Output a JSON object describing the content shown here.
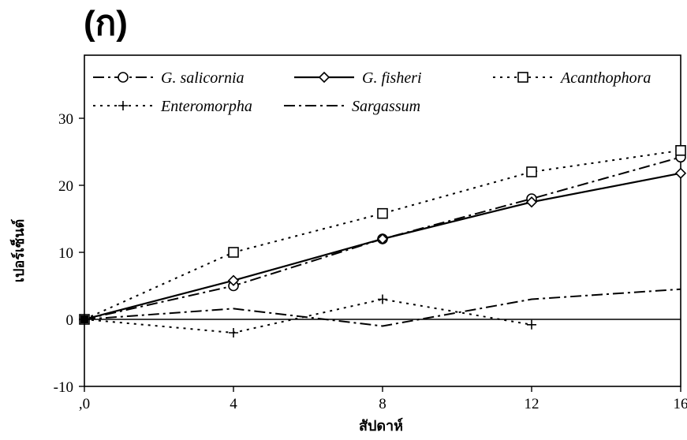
{
  "panel_label": "(ก)",
  "chart_data": {
    "type": "line",
    "title": "",
    "xlabel": "สัปดาห์",
    "ylabel": "เปอร์เซ็นต์",
    "x": [
      0,
      4,
      8,
      12,
      16
    ],
    "x_tick_labels": [
      ",0",
      "4",
      "8",
      "12",
      "16"
    ],
    "xlim": [
      0,
      16
    ],
    "ylim": [
      -10,
      30
    ],
    "y_ticks": [
      -10,
      0,
      10,
      20,
      30
    ],
    "y_tick_labels": [
      "-10",
      "0",
      "10",
      "20",
      "30"
    ],
    "grid": false,
    "legend_position": "top",
    "series": [
      {
        "name": "G. salicornia",
        "marker": "circle",
        "line_style": "dashdot",
        "color": "#000000",
        "x": [
          0,
          4,
          8,
          12,
          16
        ],
        "values": [
          0,
          5,
          12,
          18,
          24.2
        ]
      },
      {
        "name": "G. fisheri",
        "marker": "diamond",
        "line_style": "solid",
        "color": "#000000",
        "x": [
          0,
          4,
          8,
          12,
          16
        ],
        "values": [
          0,
          5.8,
          12,
          17.5,
          21.8
        ]
      },
      {
        "name": "Acanthophora",
        "marker": "square",
        "line_style": "dotted",
        "color": "#000000",
        "x": [
          0,
          4,
          8,
          12,
          16
        ],
        "values": [
          0,
          10,
          15.8,
          22,
          25.2
        ]
      },
      {
        "name": "Enteromorpha",
        "marker": "plus",
        "line_style": "dotted",
        "color": "#000000",
        "x": [
          0,
          4,
          8,
          12
        ],
        "values": [
          0,
          -2,
          3,
          -0.8
        ]
      },
      {
        "name": "Sargassum",
        "marker": "cross",
        "line_style": "dashdot",
        "color": "#000000",
        "x": [
          0,
          4,
          8,
          12,
          16
        ],
        "values": [
          0,
          1.6,
          -1,
          3,
          4.5
        ]
      }
    ]
  }
}
